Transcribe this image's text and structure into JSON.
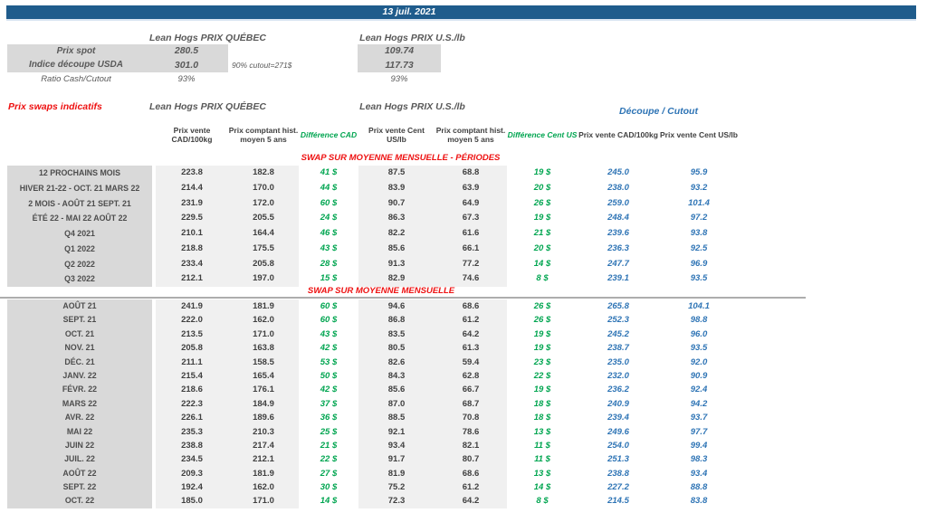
{
  "date_banner": "13 juil. 2021",
  "spot": {
    "quebec_title": "Lean Hogs PRIX QUÉBEC",
    "us_title": "Lean Hogs PRIX U.S./lb",
    "rows": [
      {
        "label": "Prix spot",
        "quebec": "280.5",
        "us": "109.74"
      },
      {
        "label": "Indice découpe USDA",
        "quebec": "301.0",
        "us": "117.73"
      },
      {
        "label": "Ratio Cash/Cutout",
        "quebec": "93%",
        "us": "93%"
      }
    ],
    "cutout_note": "90% cutout=271$"
  },
  "swaps": {
    "title": "Prix swaps indicatifs",
    "quebec_title": "Lean Hogs PRIX QUÉBEC",
    "us_title": "Lean Hogs PRIX U.S./lb",
    "decoupe_title": "Découpe / Cutout",
    "columns": [
      "Prix vente CAD/100kg",
      "Prix comptant hist. moyen 5 ans",
      "Différence CAD",
      "Prix vente Cent US/lb",
      "Prix comptant hist. moyen 5 ans",
      "Différence Cent US",
      "Prix vente CAD/100kg",
      "Prix vente Cent US/lb"
    ],
    "periods_header": "SWAP SUR MOYENNE MENSUELLE - PÉRIODES",
    "monthly_header": "SWAP SUR MOYENNE MENSUELLE",
    "periods": [
      {
        "label": "12 PROCHAINS MOIS",
        "cells": [
          "223.8",
          "182.8",
          "41 $",
          "87.5",
          "68.8",
          "19 $",
          "245.0",
          "95.9"
        ]
      },
      {
        "label": "HIVER 21-22 - OCT. 21 MARS 22",
        "cells": [
          "214.4",
          "170.0",
          "44 $",
          "83.9",
          "63.9",
          "20 $",
          "238.0",
          "93.2"
        ]
      },
      {
        "label": "2 MOIS - AOÛT 21 SEPT. 21",
        "cells": [
          "231.9",
          "172.0",
          "60 $",
          "90.7",
          "64.9",
          "26 $",
          "259.0",
          "101.4"
        ]
      },
      {
        "label": "ÉTÉ 22 - MAI 22 AOÛT 22",
        "cells": [
          "229.5",
          "205.5",
          "24 $",
          "86.3",
          "67.3",
          "19 $",
          "248.4",
          "97.2"
        ]
      },
      {
        "label": "Q4 2021",
        "cells": [
          "210.1",
          "164.4",
          "46 $",
          "82.2",
          "61.6",
          "21 $",
          "239.6",
          "93.8"
        ]
      },
      {
        "label": "Q1 2022",
        "cells": [
          "218.8",
          "175.5",
          "43 $",
          "85.6",
          "66.1",
          "20 $",
          "236.3",
          "92.5"
        ]
      },
      {
        "label": "Q2 2022",
        "cells": [
          "233.4",
          "205.8",
          "28 $",
          "91.3",
          "77.2",
          "14 $",
          "247.7",
          "96.9"
        ]
      },
      {
        "label": "Q3 2022",
        "cells": [
          "212.1",
          "197.0",
          "15 $",
          "82.9",
          "74.6",
          "8 $",
          "239.1",
          "93.5"
        ]
      }
    ],
    "monthly": [
      {
        "label": "AOÛT 21",
        "cells": [
          "241.9",
          "181.9",
          "60 $",
          "94.6",
          "68.6",
          "26 $",
          "265.8",
          "104.1"
        ]
      },
      {
        "label": "SEPT. 21",
        "cells": [
          "222.0",
          "162.0",
          "60 $",
          "86.8",
          "61.2",
          "26 $",
          "252.3",
          "98.8"
        ]
      },
      {
        "label": "OCT. 21",
        "cells": [
          "213.5",
          "171.0",
          "43 $",
          "83.5",
          "64.2",
          "19 $",
          "245.2",
          "96.0"
        ]
      },
      {
        "label": "NOV. 21",
        "cells": [
          "205.8",
          "163.8",
          "42 $",
          "80.5",
          "61.3",
          "19 $",
          "238.7",
          "93.5"
        ]
      },
      {
        "label": "DÉC. 21",
        "cells": [
          "211.1",
          "158.5",
          "53 $",
          "82.6",
          "59.4",
          "23 $",
          "235.0",
          "92.0"
        ]
      },
      {
        "label": "JANV. 22",
        "cells": [
          "215.4",
          "165.4",
          "50 $",
          "84.3",
          "62.8",
          "22 $",
          "232.0",
          "90.9"
        ]
      },
      {
        "label": "FÉVR. 22",
        "cells": [
          "218.6",
          "176.1",
          "42 $",
          "85.6",
          "66.7",
          "19 $",
          "236.2",
          "92.4"
        ]
      },
      {
        "label": "MARS 22",
        "cells": [
          "222.3",
          "184.9",
          "37 $",
          "87.0",
          "68.7",
          "18 $",
          "240.9",
          "94.2"
        ]
      },
      {
        "label": "AVR. 22",
        "cells": [
          "226.1",
          "189.6",
          "36 $",
          "88.5",
          "70.8",
          "18 $",
          "239.4",
          "93.7"
        ]
      },
      {
        "label": "MAI 22",
        "cells": [
          "235.3",
          "210.3",
          "25 $",
          "92.1",
          "78.6",
          "13 $",
          "249.6",
          "97.7"
        ]
      },
      {
        "label": "JUIN 22",
        "cells": [
          "238.8",
          "217.4",
          "21 $",
          "93.4",
          "82.1",
          "11 $",
          "254.0",
          "99.4"
        ]
      },
      {
        "label": "JUIL. 22",
        "cells": [
          "234.5",
          "212.1",
          "22 $",
          "91.7",
          "80.7",
          "11 $",
          "251.3",
          "98.3"
        ]
      },
      {
        "label": "AOÛT 22",
        "cells": [
          "209.3",
          "181.9",
          "27 $",
          "81.9",
          "68.6",
          "13 $",
          "238.8",
          "93.4"
        ]
      },
      {
        "label": "SEPT. 22",
        "cells": [
          "192.4",
          "162.0",
          "30 $",
          "75.2",
          "61.2",
          "14 $",
          "227.2",
          "88.8"
        ]
      },
      {
        "label": "OCT. 22",
        "cells": [
          "185.0",
          "171.0",
          "14 $",
          "72.3",
          "64.2",
          "8 $",
          "214.5",
          "83.8"
        ]
      }
    ]
  },
  "colors": {
    "banner_blue": "#1F5C8C",
    "section_red": "#EE1111",
    "difference_green": "#00A550",
    "cutout_blue": "#2E74B5",
    "label_gray": "#D9D9D9",
    "band_gray": "#F0F0F0"
  }
}
